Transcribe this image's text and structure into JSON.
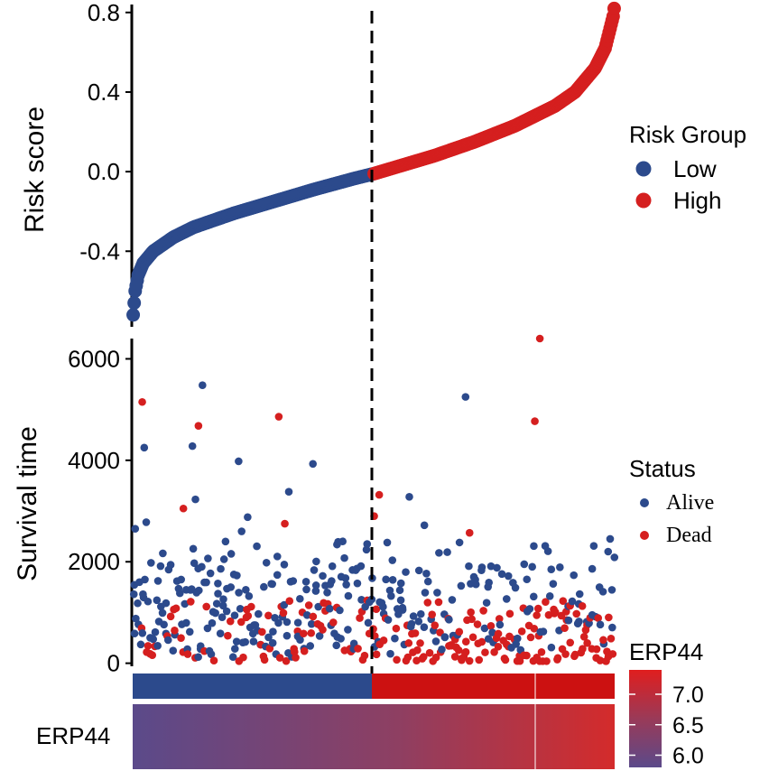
{
  "colors": {
    "low": "#2C4A8C",
    "high": "#D51F1F",
    "alive": "#2C4A8C",
    "dead": "#D51F1F",
    "gradient_low": "#5B4A8A",
    "gradient_high": "#D42B2B"
  },
  "chart_data": [
    {
      "type": "scatter",
      "panel": "risk-score",
      "ylabel": "Risk score",
      "xlabel": "",
      "ylim": [
        -0.78,
        0.84
      ],
      "yticks": [
        0.8,
        0.4,
        0.0,
        -0.4
      ],
      "ytick_labels": [
        "0.8",
        "0.4",
        "0.0",
        "-0.4"
      ],
      "n_patients": 480,
      "cutoff_index": 240,
      "risk_curve_x": [
        0,
        2,
        5,
        10,
        20,
        40,
        60,
        100,
        140,
        180,
        220,
        240,
        260,
        300,
        340,
        380,
        420,
        440,
        460,
        470,
        475,
        478,
        479
      ],
      "risk_curve_y": [
        -0.72,
        -0.6,
        -0.52,
        -0.46,
        -0.4,
        -0.33,
        -0.28,
        -0.21,
        -0.15,
        -0.09,
        -0.035,
        -0.01,
        0.02,
        0.08,
        0.15,
        0.23,
        0.33,
        0.4,
        0.52,
        0.62,
        0.72,
        0.78,
        0.82
      ],
      "legend": {
        "title": "Risk Group",
        "entries": [
          "Low",
          "High"
        ]
      }
    },
    {
      "type": "scatter",
      "panel": "survival-time",
      "ylabel": "Survival time",
      "xlabel": "",
      "ylim": [
        -60,
        6400
      ],
      "yticks": [
        6000,
        4000,
        2000,
        0
      ],
      "ytick_labels": [
        "6000",
        "4000",
        "2000",
        "0"
      ],
      "legend": {
        "title": "Status",
        "entries": [
          "Alive",
          "Dead"
        ]
      },
      "highlighted_points": [
        {
          "x": 2,
          "y": 2650,
          "status": "Alive"
        },
        {
          "x": 9,
          "y": 5150,
          "status": "Dead"
        },
        {
          "x": 11,
          "y": 4250,
          "status": "Alive"
        },
        {
          "x": 13,
          "y": 2780,
          "status": "Alive"
        },
        {
          "x": 59,
          "y": 4280,
          "status": "Alive"
        },
        {
          "x": 69,
          "y": 5480,
          "status": "Alive"
        },
        {
          "x": 62,
          "y": 3230,
          "status": "Alive"
        },
        {
          "x": 50,
          "y": 3050,
          "status": "Dead"
        },
        {
          "x": 65,
          "y": 4680,
          "status": "Dead"
        },
        {
          "x": 105,
          "y": 3980,
          "status": "Alive"
        },
        {
          "x": 114,
          "y": 2880,
          "status": "Alive"
        },
        {
          "x": 108,
          "y": 2600,
          "status": "Alive"
        },
        {
          "x": 145,
          "y": 4860,
          "status": "Dead"
        },
        {
          "x": 155,
          "y": 3380,
          "status": "Alive"
        },
        {
          "x": 151,
          "y": 2750,
          "status": "Dead"
        },
        {
          "x": 179,
          "y": 3930,
          "status": "Alive"
        },
        {
          "x": 203,
          "y": 2340,
          "status": "Alive"
        },
        {
          "x": 233,
          "y": 2350,
          "status": "Alive"
        },
        {
          "x": 240,
          "y": 2900,
          "status": "Dead"
        },
        {
          "x": 245,
          "y": 3320,
          "status": "Dead"
        },
        {
          "x": 275,
          "y": 3280,
          "status": "Alive"
        },
        {
          "x": 290,
          "y": 2720,
          "status": "Alive"
        },
        {
          "x": 325,
          "y": 2380,
          "status": "Alive"
        },
        {
          "x": 335,
          "y": 2570,
          "status": "Dead"
        },
        {
          "x": 331,
          "y": 5250,
          "status": "Alive"
        },
        {
          "x": 399,
          "y": 2310,
          "status": "Alive"
        },
        {
          "x": 400,
          "y": 4770,
          "status": "Dead"
        },
        {
          "x": 405,
          "y": 6400,
          "status": "Dead"
        },
        {
          "x": 475,
          "y": 2450,
          "status": "Alive"
        },
        {
          "x": 473,
          "y": 2200,
          "status": "Alive"
        }
      ]
    },
    {
      "type": "heatmap",
      "panel": "expression",
      "row_label": "ERP44",
      "legend": {
        "title": "ERP44",
        "ticks": [
          7.0,
          6.5,
          6.0
        ],
        "tick_labels": [
          "7.0",
          "6.5",
          "6.0"
        ],
        "range": [
          5.8,
          7.4
        ]
      },
      "groups": [
        "Low",
        "High"
      ]
    }
  ]
}
